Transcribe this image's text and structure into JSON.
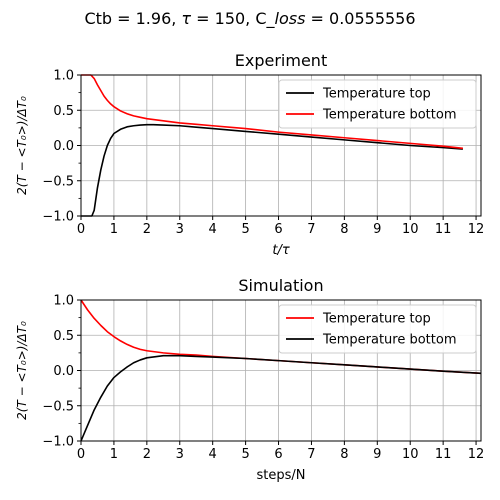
{
  "figure": {
    "suptitle_prefix": "Ctb = 1.96, ",
    "suptitle_tau_sym": "τ",
    "suptitle_mid": " = 150, C_",
    "suptitle_loss": "loss",
    "suptitle_suffix": " = 0.0555556"
  },
  "chart_data": [
    {
      "type": "line",
      "title": "Experiment",
      "xlabel": "t/τ",
      "ylabel": "2(T − <T₀>)/ΔT₀",
      "xlim": [
        0,
        12.15
      ],
      "ylim": [
        -1.0,
        1.0
      ],
      "xticks": [
        0,
        1,
        2,
        3,
        4,
        5,
        6,
        7,
        8,
        9,
        10,
        11,
        12
      ],
      "xtick_labels": [
        "0",
        "1",
        "2",
        "3",
        "4",
        "5",
        "6",
        "7",
        "8",
        "9",
        "10",
        "11",
        "12"
      ],
      "yticks": [
        -1.0,
        -0.5,
        0.0,
        0.5,
        1.0
      ],
      "ytick_labels": [
        "−1.0",
        "−0.5",
        "0.0",
        "0.5",
        "1.0"
      ],
      "grid": true,
      "legend_position": "top-right",
      "series": [
        {
          "name": "Temperature top",
          "color": "#000000",
          "x": [
            0,
            0.33,
            0.4,
            0.5,
            0.6,
            0.7,
            0.8,
            0.9,
            1.0,
            1.2,
            1.4,
            1.6,
            1.8,
            2.0,
            2.2,
            2.5,
            3.0,
            3.5,
            4,
            5,
            6,
            7,
            8,
            9,
            10,
            11,
            11.6
          ],
          "y": [
            -1.0,
            -1.0,
            -0.92,
            -0.6,
            -0.35,
            -0.15,
            0.0,
            0.1,
            0.17,
            0.23,
            0.265,
            0.28,
            0.29,
            0.295,
            0.295,
            0.29,
            0.28,
            0.26,
            0.24,
            0.2,
            0.16,
            0.12,
            0.08,
            0.04,
            0.0,
            -0.03,
            -0.05
          ]
        },
        {
          "name": "Temperature bottom",
          "color": "#ff0000",
          "x": [
            0,
            0.3,
            0.4,
            0.5,
            0.6,
            0.7,
            0.8,
            0.9,
            1.0,
            1.2,
            1.4,
            1.6,
            1.8,
            2.0,
            2.5,
            3.0,
            3.5,
            4,
            5,
            6,
            7,
            8,
            9,
            10,
            11,
            11.6
          ],
          "y": [
            1.0,
            1.0,
            0.95,
            0.86,
            0.78,
            0.7,
            0.64,
            0.59,
            0.55,
            0.49,
            0.45,
            0.42,
            0.4,
            0.38,
            0.35,
            0.32,
            0.3,
            0.28,
            0.24,
            0.19,
            0.15,
            0.11,
            0.07,
            0.03,
            -0.01,
            -0.04
          ]
        }
      ]
    },
    {
      "type": "line",
      "title": "Simulation",
      "xlabel": "steps/N",
      "ylabel": "2(T − <T₀>)/ΔT₀",
      "xlim": [
        0,
        12.15
      ],
      "ylim": [
        -1.0,
        1.0
      ],
      "xticks": [
        0,
        1,
        2,
        3,
        4,
        5,
        6,
        7,
        8,
        9,
        10,
        11,
        12
      ],
      "xtick_labels": [
        "0",
        "1",
        "2",
        "3",
        "4",
        "5",
        "6",
        "7",
        "8",
        "9",
        "10",
        "11",
        "12"
      ],
      "yticks": [
        -1.0,
        -0.5,
        0.0,
        0.5,
        1.0
      ],
      "ytick_labels": [
        "−1.0",
        "−0.5",
        "0.0",
        "0.5",
        "1.0"
      ],
      "grid": true,
      "legend_position": "top-right",
      "series": [
        {
          "name": "Temperature top",
          "color": "#ff0000",
          "x": [
            0,
            0.2,
            0.4,
            0.6,
            0.8,
            1.0,
            1.2,
            1.4,
            1.6,
            1.8,
            2.0,
            2.5,
            3.0,
            3.5,
            4,
            5,
            6,
            7,
            8,
            9,
            10,
            11,
            12.15
          ],
          "y": [
            1.0,
            0.86,
            0.74,
            0.64,
            0.55,
            0.48,
            0.42,
            0.37,
            0.33,
            0.3,
            0.28,
            0.25,
            0.23,
            0.22,
            0.2,
            0.17,
            0.14,
            0.11,
            0.08,
            0.05,
            0.02,
            -0.01,
            -0.04
          ]
        },
        {
          "name": "Temperature bottom",
          "color": "#000000",
          "x": [
            0,
            0.2,
            0.4,
            0.6,
            0.8,
            1.0,
            1.2,
            1.4,
            1.6,
            1.8,
            2.0,
            2.5,
            3.0,
            3.5,
            4,
            5,
            6,
            7,
            8,
            9,
            10,
            11,
            12.15
          ],
          "y": [
            -1.0,
            -0.78,
            -0.56,
            -0.38,
            -0.22,
            -0.1,
            -0.02,
            0.05,
            0.11,
            0.15,
            0.18,
            0.21,
            0.21,
            0.2,
            0.19,
            0.17,
            0.14,
            0.11,
            0.08,
            0.05,
            0.02,
            -0.01,
            -0.04
          ]
        }
      ]
    }
  ]
}
